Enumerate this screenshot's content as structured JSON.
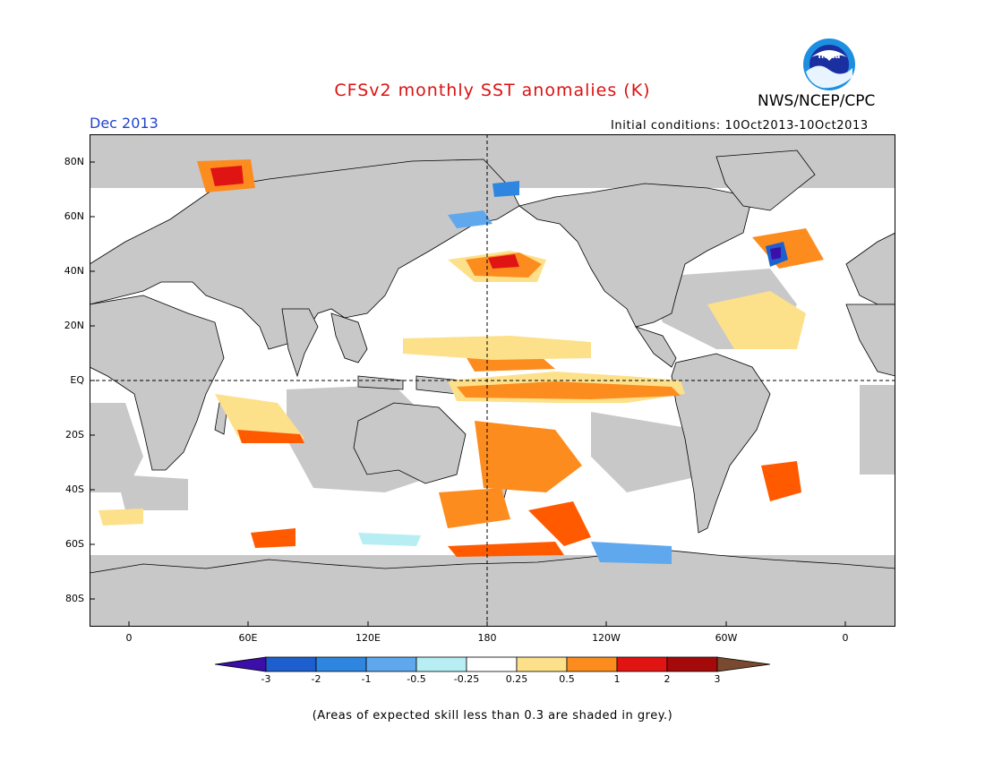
{
  "title": "CFSv2 monthly SST anomalies (K)",
  "agency": "NWS/NCEP/CPC",
  "logo_text": "noaa",
  "month": "Dec 2013",
  "initial_conditions": "Initial conditions: 10Oct2013-10Oct2013",
  "lat_labels": [
    "80N",
    "60N",
    "40N",
    "20N",
    "EQ",
    "20S",
    "40S",
    "60S",
    "80S"
  ],
  "lon_labels": [
    "0",
    "60E",
    "120E",
    "180",
    "120W",
    "60W",
    "0"
  ],
  "colorbar": {
    "labels": [
      "-3",
      "-2",
      "-1",
      "-0.5",
      "-0.25",
      "0.25",
      "0.5",
      "1",
      "2",
      "3"
    ],
    "colors": [
      "#3b0fa8",
      "#1e5fd0",
      "#2f86e0",
      "#5fa8ee",
      "#b6eef4",
      "#ffffff",
      "#fde08a",
      "#fd8c1e",
      "#ff5a00",
      "#e11414",
      "#a50a0a",
      "#7a4a30"
    ]
  },
  "land_color": "#c8c8c8",
  "footnote": "(Areas of expected skill less than 0.3 are shaded in grey.)"
}
